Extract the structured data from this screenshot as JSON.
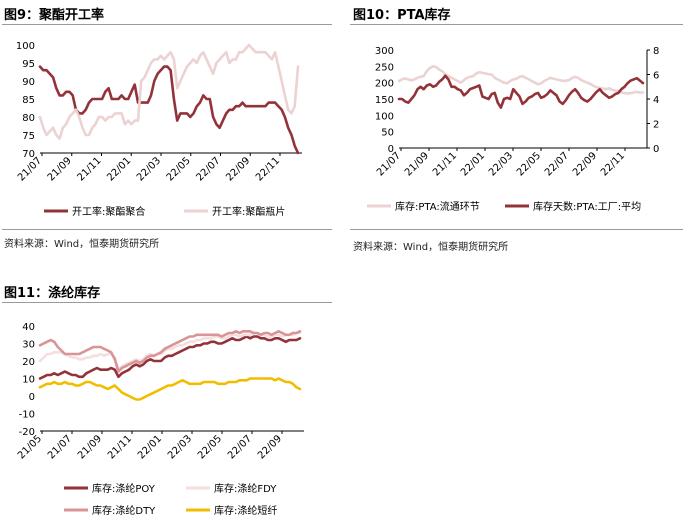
{
  "figures": [
    {
      "title": "图9：聚酯开工率",
      "source": "资料来源：Wind，恒泰期货研究所",
      "chart_data": {
        "type": "line",
        "x_ticks": [
          "21/07",
          "21/09",
          "21/11",
          "22/01",
          "22/03",
          "22/05",
          "22/07",
          "22/09",
          "22/11"
        ],
        "ylim": [
          70,
          100
        ],
        "yticks": [
          70,
          75,
          80,
          85,
          90,
          95,
          100
        ],
        "series": [
          {
            "name": "开工率:聚酯聚合",
            "color": "#933339",
            "values": [
              94,
              93,
              93,
              92,
              91,
              88,
              86,
              86,
              87,
              87,
              86,
              82,
              81,
              81,
              82,
              84,
              85,
              85,
              85,
              85,
              87,
              88,
              85,
              85,
              85,
              86,
              85,
              85,
              87,
              89,
              84,
              84,
              84,
              84,
              86,
              90,
              92,
              93,
              94,
              94,
              93,
              85,
              79,
              81,
              81,
              81,
              80,
              81,
              83,
              84,
              86,
              85,
              85,
              80,
              78,
              77,
              79,
              81,
              82,
              82,
              83,
              83,
              84,
              83,
              83,
              83,
              83,
              83,
              83,
              83,
              84,
              84,
              84,
              83,
              82,
              80,
              77,
              75,
              72,
              70
            ]
          },
          {
            "name": "开工率:聚酯瓶片",
            "color": "#ecd2d3",
            "values": [
              80,
              77,
              75,
              76,
              77,
              75,
              74,
              77,
              78,
              80,
              81,
              82,
              80,
              77,
              75,
              75,
              77,
              78,
              80,
              80,
              79,
              80,
              80,
              81,
              81,
              81,
              78,
              79,
              78,
              79,
              79,
              90,
              91,
              93,
              95,
              96,
              96,
              97,
              96,
              97,
              98,
              96,
              88,
              90,
              92,
              94,
              95,
              96,
              95,
              97,
              98,
              96,
              94,
              92,
              95,
              96,
              97,
              98,
              95,
              96,
              96,
              98,
              98,
              99,
              100,
              99,
              98,
              98,
              98,
              98,
              97,
              96,
              98,
              94,
              90,
              86,
              82,
              81,
              83,
              94
            ]
          }
        ]
      }
    },
    {
      "title": "图10：PTA库存",
      "chart_data": {
        "type": "line",
        "x_ticks": [
          "21/07",
          "21/09",
          "21/11",
          "22/01",
          "22/03",
          "22/05",
          "22/07",
          "22/09",
          "22/11"
        ],
        "ylim": [
          0,
          300
        ],
        "yticks": [
          0,
          50,
          100,
          150,
          200,
          250,
          300
        ],
        "y2lim": [
          0,
          8
        ],
        "y2ticks": [
          0,
          2,
          4,
          6,
          8
        ],
        "series": [
          {
            "name": "库存:PTA:流通环节",
            "color": "#ecd2d3",
            "axis": "left",
            "values": [
              205,
              210,
              213,
              210,
              207,
              210,
              215,
              218,
              220,
              235,
              245,
              250,
              248,
              240,
              235,
              225,
              220,
              215,
              210,
              205,
              200,
              208,
              215,
              218,
              220,
              228,
              232,
              230,
              228,
              226,
              225,
              215,
              210,
              205,
              200,
              198,
              205,
              210,
              212,
              218,
              220,
              215,
              210,
              205,
              200,
              195,
              198,
              205,
              210,
              215,
              212,
              210,
              208,
              205,
              206,
              208,
              214,
              218,
              215,
              208,
              204,
              200,
              196,
              190,
              186,
              184,
              182,
              180,
              183,
              178,
              176,
              174,
              170,
              168,
              167,
              168,
              170,
              172,
              170,
              170
            ]
          },
          {
            "name": "库存天数:PTA:工厂:平均",
            "color": "#933339",
            "axis": "right",
            "values": [
              4.0,
              4.0,
              3.8,
              3.7,
              4.0,
              4.3,
              4.8,
              5.0,
              4.8,
              5.1,
              5.2,
              5.0,
              5.1,
              5.4,
              5.6,
              5.9,
              5.6,
              5.0,
              5.0,
              4.8,
              4.7,
              4.3,
              4.5,
              4.8,
              4.9,
              5.0,
              5.1,
              4.2,
              4.1,
              4.0,
              4.4,
              4.5,
              3.7,
              3.3,
              4.0,
              4.1,
              4.0,
              4.8,
              4.5,
              4.2,
              3.6,
              3.8,
              4.1,
              4.2,
              4.4,
              4.5,
              4.1,
              4.2,
              4.4,
              4.7,
              4.5,
              4.3,
              3.8,
              3.6,
              3.9,
              4.3,
              4.6,
              4.8,
              4.5,
              4.1,
              3.9,
              3.8,
              4.0,
              4.3,
              4.6,
              4.8,
              4.5,
              4.3,
              4.1,
              4.2,
              4.4,
              4.5,
              4.8,
              5.0,
              5.3,
              5.5,
              5.6,
              5.7,
              5.5,
              5.3
            ]
          }
        ]
      }
    },
    {
      "title": "图11：涤纶库存",
      "chart_data": {
        "type": "line",
        "x_ticks": [
          "21/05",
          "21/07",
          "21/09",
          "21/11",
          "22/01",
          "22/03",
          "22/05",
          "22/07",
          "22/09"
        ],
        "ylim": [
          -20,
          40
        ],
        "yticks": [
          -20,
          -10,
          0,
          10,
          20,
          30,
          40
        ],
        "series": [
          {
            "name": "库存:涤纶POY",
            "color": "#933339",
            "values": [
              10,
              11,
              12,
              12,
              13,
              12,
              13,
              14,
              13,
              12,
              12,
              11,
              11,
              13,
              14,
              15,
              16,
              15,
              15,
              15,
              16,
              15,
              11,
              13,
              14,
              15,
              17,
              18,
              17,
              18,
              20,
              21,
              20,
              20,
              20,
              22,
              23,
              23,
              24,
              25,
              26,
              27,
              28,
              28,
              29,
              29,
              30,
              30,
              31,
              31,
              30,
              30,
              31,
              32,
              33,
              32,
              32,
              33,
              34,
              33,
              34,
              34,
              33,
              33,
              32,
              32,
              33,
              33,
              32,
              31,
              32,
              32,
              32,
              33
            ]
          },
          {
            "name": "库存:涤纶FDY",
            "color": "#f3dfdf",
            "values": [
              20,
              22,
              24,
              24,
              25,
              25,
              25,
              24,
              23,
              22,
              22,
              21,
              21,
              22,
              22,
              23,
              23,
              24,
              23,
              24,
              24,
              22,
              15,
              17,
              18,
              19,
              20,
              21,
              20,
              21,
              23,
              24,
              23,
              24,
              24,
              26,
              27,
              27,
              28,
              29,
              29,
              30,
              31,
              31,
              32,
              32,
              33,
              33,
              33,
              34,
              34,
              33,
              33,
              34,
              35,
              35,
              34,
              35,
              35,
              35,
              36,
              36,
              35,
              35,
              34,
              34,
              35,
              35,
              34,
              35,
              35,
              35,
              36,
              36
            ]
          },
          {
            "name": "库存:涤纶DTY",
            "color": "#d99496",
            "values": [
              29,
              30,
              31,
              32,
              31,
              28,
              26,
              24,
              24,
              24,
              24,
              24,
              25,
              26,
              27,
              28,
              28,
              28,
              27,
              26,
              25,
              21,
              14,
              16,
              17,
              18,
              19,
              20,
              19,
              20,
              22,
              23,
              23,
              24,
              25,
              27,
              28,
              29,
              30,
              31,
              32,
              33,
              34,
              34,
              35,
              35,
              35,
              35,
              35,
              35,
              35,
              34,
              35,
              36,
              36,
              37,
              36,
              37,
              37,
              37,
              36,
              36,
              35,
              36,
              36,
              35,
              36,
              37,
              36,
              35,
              35,
              36,
              36,
              37
            ]
          },
          {
            "name": "库存:涤纶短纤",
            "color": "#f1bd00",
            "values": [
              5,
              6,
              7,
              7,
              8,
              7,
              7,
              8,
              7,
              7,
              6,
              6,
              7,
              8,
              8,
              7,
              6,
              6,
              5,
              4,
              5,
              6,
              4,
              2,
              1,
              0,
              -1,
              -2,
              -2,
              -1,
              0,
              1,
              2,
              3,
              4,
              5,
              6,
              6,
              7,
              8,
              9,
              8,
              7,
              7,
              7,
              7,
              8,
              8,
              8,
              8,
              7,
              7,
              7,
              8,
              8,
              8,
              9,
              9,
              9,
              10,
              10,
              10,
              10,
              10,
              10,
              10,
              9,
              10,
              9,
              8,
              8,
              7,
              5,
              4
            ]
          }
        ]
      }
    }
  ]
}
